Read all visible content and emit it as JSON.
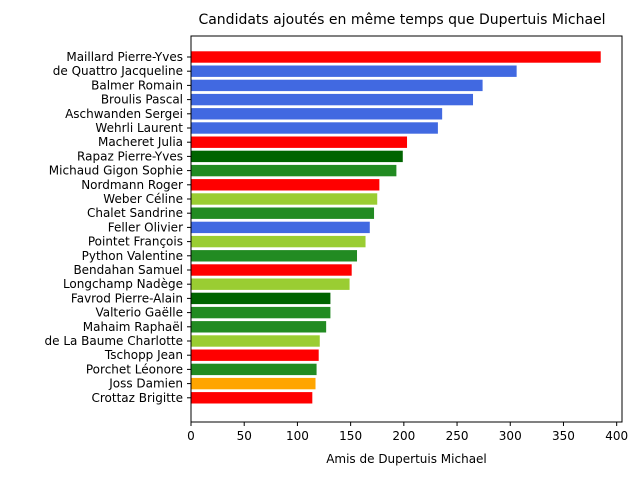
{
  "chart_data": {
    "type": "bar",
    "orientation": "horizontal",
    "title": "Candidats ajoutés en même temps que Dupertuis Michael",
    "xlabel": "Amis de Dupertuis Michael",
    "ylabel": "",
    "xlim": [
      0,
      405
    ],
    "xticks": [
      0,
      50,
      100,
      150,
      200,
      250,
      300,
      350,
      400
    ],
    "grid": false,
    "categories": [
      "Maillard Pierre-Yves",
      "de Quattro Jacqueline",
      "Balmer Romain",
      "Broulis Pascal",
      "Aschwanden Sergei",
      "Wehrli Laurent",
      "Macheret Julia",
      "Rapaz Pierre-Yves",
      "Michaud Gigon Sophie",
      "Nordmann Roger",
      "Weber Céline",
      "Chalet Sandrine",
      "Feller Olivier",
      "Pointet François",
      "Python Valentine",
      "Bendahan Samuel",
      "Longchamp Nadège",
      "Favrod Pierre-Alain",
      "Valterio Gaëlle",
      "Mahaim Raphaël",
      "de La Baume Charlotte",
      "Tschopp Jean",
      "Porchet Léonore",
      "Joss Damien",
      "Crottaz Brigitte"
    ],
    "values": [
      385,
      306,
      274,
      265,
      236,
      232,
      203,
      199,
      193,
      177,
      175,
      172,
      168,
      164,
      156,
      151,
      149,
      131,
      131,
      127,
      121,
      120,
      118,
      117,
      114
    ],
    "colors": [
      "#ff0000",
      "#4169e1",
      "#4169e1",
      "#4169e1",
      "#4169e1",
      "#4169e1",
      "#ff0000",
      "#006400",
      "#228b22",
      "#ff0000",
      "#9acd32",
      "#228b22",
      "#4169e1",
      "#9acd32",
      "#228b22",
      "#ff0000",
      "#9acd32",
      "#006400",
      "#228b22",
      "#228b22",
      "#9acd32",
      "#ff0000",
      "#228b22",
      "#ffa500",
      "#ff0000"
    ]
  }
}
